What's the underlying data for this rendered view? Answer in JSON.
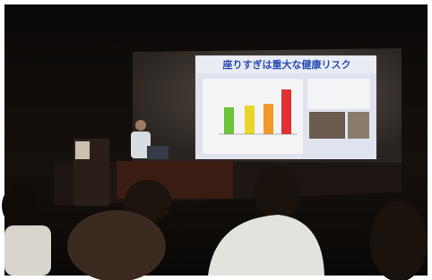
{
  "slide": {
    "title": "座りすぎは重大な健康リスク"
  }
}
